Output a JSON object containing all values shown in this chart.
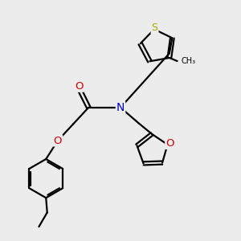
{
  "bg_color": "#ececec",
  "atom_colors": {
    "C": "#000000",
    "N": "#0000cc",
    "O": "#cc0000",
    "S": "#aaaa00",
    "H": "#000000"
  },
  "bond_color": "#000000",
  "line_width": 1.6,
  "font_size": 8.5,
  "figsize": [
    3.0,
    3.0
  ],
  "dpi": 100,
  "xlim": [
    0,
    10
  ],
  "ylim": [
    0,
    10
  ]
}
